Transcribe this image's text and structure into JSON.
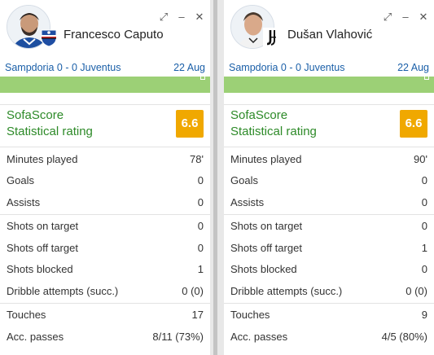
{
  "panels": [
    {
      "player_name": "Francesco Caputo",
      "team_logo": "sampdoria-crest-icon",
      "match": "Sampdoria 0 - 0 Juventus",
      "date": "22 Aug",
      "rating_label_1": "SofaScore",
      "rating_label_2": "Statistical rating",
      "rating": "6.6",
      "groups": [
        [
          {
            "label": "Minutes played",
            "value": "78'"
          },
          {
            "label": "Goals",
            "value": "0"
          },
          {
            "label": "Assists",
            "value": "0"
          }
        ],
        [
          {
            "label": "Shots on target",
            "value": "0"
          },
          {
            "label": "Shots off target",
            "value": "0"
          },
          {
            "label": "Shots blocked",
            "value": "1"
          },
          {
            "label": "Dribble attempts (succ.)",
            "value": "0 (0)"
          }
        ],
        [
          {
            "label": "Touches",
            "value": "17"
          },
          {
            "label": "Acc. passes",
            "value": "8/11 (73%)"
          }
        ]
      ]
    },
    {
      "player_name": "Dušan Vlahović",
      "team_logo": "juventus-crest-icon",
      "match": "Sampdoria 0 - 0 Juventus",
      "date": "22 Aug",
      "rating_label_1": "SofaScore",
      "rating_label_2": "Statistical rating",
      "rating": "6.6",
      "groups": [
        [
          {
            "label": "Minutes played",
            "value": "90'"
          },
          {
            "label": "Goals",
            "value": "0"
          },
          {
            "label": "Assists",
            "value": "0"
          }
        ],
        [
          {
            "label": "Shots on target",
            "value": "0"
          },
          {
            "label": "Shots off target",
            "value": "1"
          },
          {
            "label": "Shots blocked",
            "value": "0"
          },
          {
            "label": "Dribble attempts (succ.)",
            "value": "0 (0)"
          }
        ],
        [
          {
            "label": "Touches",
            "value": "9"
          },
          {
            "label": "Acc. passes",
            "value": "4/5 (80%)"
          }
        ]
      ]
    }
  ],
  "window_controls": {
    "expand": "⤢",
    "minimize": "–",
    "close": "✕"
  },
  "colors": {
    "rating_badge": "#f0a800",
    "rating_text": "#2d8a28",
    "match_link": "#1a5fa8",
    "pitch_bar": "#9cd076"
  }
}
